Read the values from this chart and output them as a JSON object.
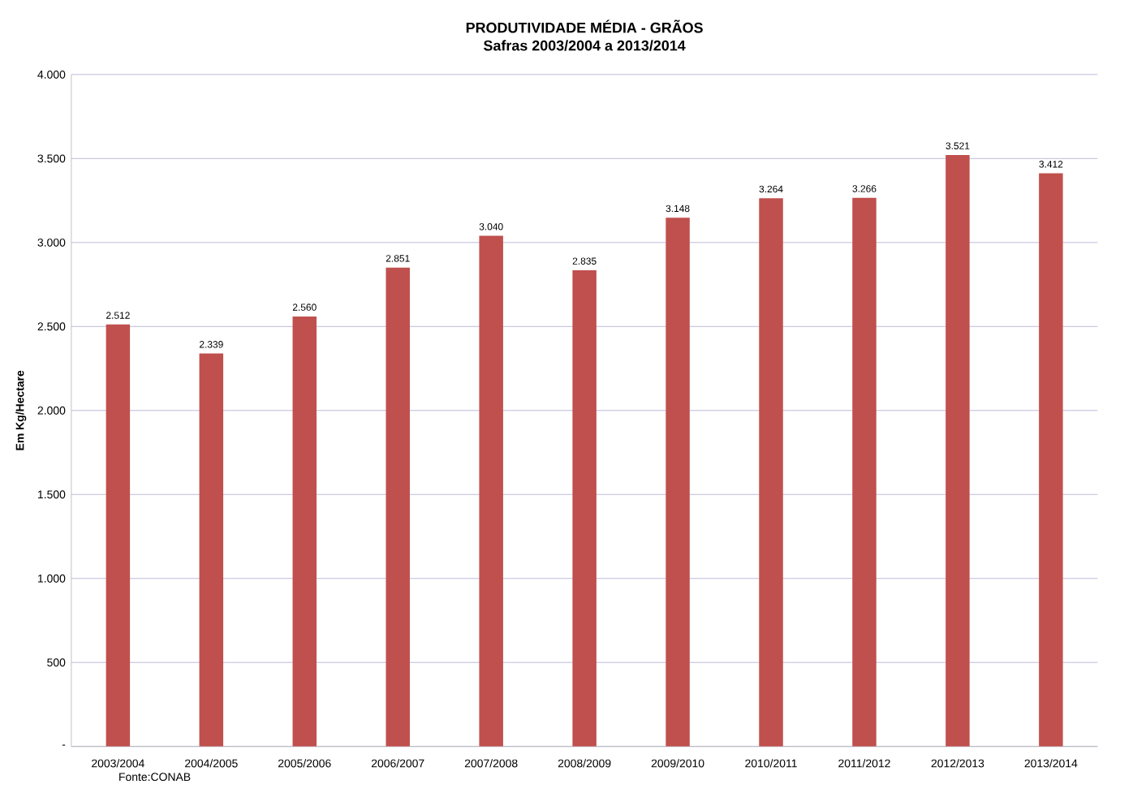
{
  "chart_data": {
    "type": "bar",
    "title": "PRODUTIVIDADE  MÉDIA - GRÃOS",
    "subtitle": "Safras 2003/2004 a 2013/2014",
    "ylabel": "Em Kg/Hectare",
    "categories": [
      "2003/2004",
      "2004/2005",
      "2005/2006",
      "2006/2007",
      "2007/2008",
      "2008/2009",
      "2009/2010",
      "2010/2011",
      "2011/2012",
      "2012/2013",
      "2013/2014"
    ],
    "values": [
      2512,
      2339,
      2560,
      2851,
      3040,
      2835,
      3148,
      3264,
      3266,
      3521,
      3412
    ],
    "value_labels": [
      "2.512",
      "2.339",
      "2.560",
      "2.851",
      "3.040",
      "2.835",
      "3.148",
      "3.264",
      "3.266",
      "3.521",
      "3.412"
    ],
    "color": "#c0504d",
    "ylim": [
      0,
      4000
    ],
    "yticks": [
      {
        "value": 0,
        "label": "-"
      },
      {
        "value": 500,
        "label": "500"
      },
      {
        "value": 1000,
        "label": "1.000"
      },
      {
        "value": 1500,
        "label": "1.500"
      },
      {
        "value": 2000,
        "label": "2.000"
      },
      {
        "value": 2500,
        "label": "2.500"
      },
      {
        "value": 3000,
        "label": "3.000"
      },
      {
        "value": 3500,
        "label": "3.500"
      },
      {
        "value": 4000,
        "label": "4.000"
      }
    ],
    "grid": "y",
    "annotations": [
      "Fonte:CONAB"
    ]
  }
}
